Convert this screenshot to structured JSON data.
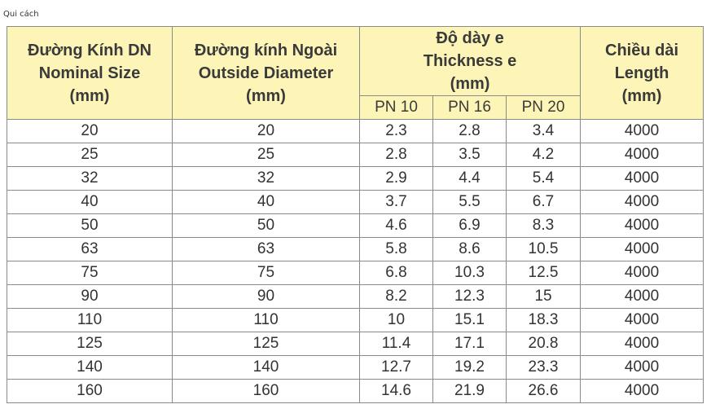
{
  "caption": "Qui cách",
  "header": {
    "col1": [
      "Đường Kính DN",
      "Nominal Size",
      "(mm)"
    ],
    "col2": [
      "Đường kính Ngoài",
      "Outside Diameter",
      "(mm)"
    ],
    "thickness": [
      "Độ dày e",
      "Thickness e",
      "(mm)"
    ],
    "sub": [
      "PN 10",
      "PN 16",
      "PN 20"
    ],
    "col4": [
      "Chiều dài",
      "Length",
      "(mm)"
    ]
  },
  "rows": [
    [
      "20",
      "20",
      "2.3",
      "2.8",
      "3.4",
      "4000"
    ],
    [
      "25",
      "25",
      "2.8",
      "3.5",
      "4.2",
      "4000"
    ],
    [
      "32",
      "32",
      "2.9",
      "4.4",
      "5.4",
      "4000"
    ],
    [
      "40",
      "40",
      "3.7",
      "5.5",
      "6.7",
      "4000"
    ],
    [
      "50",
      "50",
      "4.6",
      "6.9",
      "8.3",
      "4000"
    ],
    [
      "63",
      "63",
      "5.8",
      "8.6",
      "10.5",
      "4000"
    ],
    [
      "75",
      "75",
      "6.8",
      "10.3",
      "12.5",
      "4000"
    ],
    [
      "90",
      "90",
      "8.2",
      "12.3",
      "15",
      "4000"
    ],
    [
      "110",
      "110",
      "10",
      "15.1",
      "18.3",
      "4000"
    ],
    [
      "125",
      "125",
      "11.4",
      "17.1",
      "20.8",
      "4000"
    ],
    [
      "140",
      "140",
      "12.7",
      "19.2",
      "23.3",
      "4000"
    ],
    [
      "160",
      "160",
      "14.6",
      "21.9",
      "26.6",
      "4000"
    ]
  ]
}
